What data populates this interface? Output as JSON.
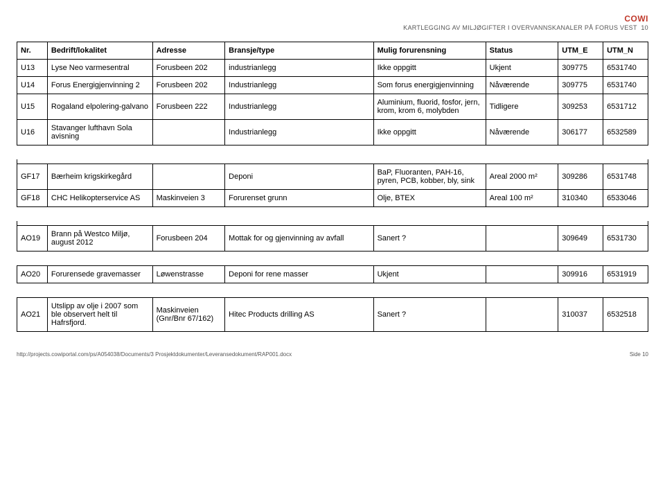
{
  "header": {
    "logo": "COWI",
    "title": "KARTLEGGING AV MILJØGIFTER I OVERVANNSKANALER PÅ FORUS VEST",
    "page_no": "10"
  },
  "columns": {
    "nr": "Nr.",
    "bedrift": "Bedrift/lokalitet",
    "adresse": "Adresse",
    "bransje": "Bransje/type",
    "mulig": "Mulig forurensning",
    "status": "Status",
    "utme": "UTM_E",
    "utmn": "UTM_N"
  },
  "rows_top": [
    {
      "nr": "U13",
      "bedrift": "Lyse Neo varmesentral",
      "adresse": "Forusbeen 202",
      "bransje": "industrianlegg",
      "mulig": "Ikke oppgitt",
      "status": "Ukjent",
      "utme": "309775",
      "utmn": "6531740"
    },
    {
      "nr": "U14",
      "bedrift": "Forus Energigjenvinning 2",
      "adresse": "Forusbeen 202",
      "bransje": "Industrianlegg",
      "mulig": "Som forus energigjenvinning",
      "status": "Nåværende",
      "utme": "309775",
      "utmn": "6531740"
    },
    {
      "nr": "U15",
      "bedrift": "Rogaland elpolering-galvano",
      "adresse": "Forusbeen 222",
      "bransje": "Industrianlegg",
      "mulig": "Aluminium, fluorid, fosfor, jern, krom, krom 6, molybden",
      "status": "Tidligere",
      "utme": "309253",
      "utmn": "6531712"
    },
    {
      "nr": "U16",
      "bedrift": "Stavanger lufthavn Sola avisning",
      "adresse": "",
      "bransje": "Industrianlegg",
      "mulig": "Ikke oppgitt",
      "status": "Nåværende",
      "utme": "306177",
      "utmn": "6532589"
    }
  ],
  "rows_gf": [
    {
      "nr": "GF17",
      "bedrift": "Bærheim krigskirkegård",
      "adresse": "",
      "bransje": "Deponi",
      "mulig": "BaP, Fluoranten, PAH-16, pyren, PCB, kobber, bly, sink",
      "status": "Areal 2000 m²",
      "utme": "309286",
      "utmn": "6531748"
    },
    {
      "nr": "GF18",
      "bedrift": "CHC Helikopterservice AS",
      "adresse": "Maskinveien 3",
      "bransje": "Forurenset grunn",
      "mulig": "Olje, BTEX",
      "status": "Areal 100 m²",
      "utme": "310340",
      "utmn": "6533046"
    }
  ],
  "rows_ao1": [
    {
      "nr": "AO19",
      "bedrift": "Brann på Westco Miljø, august 2012",
      "adresse": "Forusbeen 204",
      "bransje": "Mottak for og gjenvinning av avfall",
      "mulig": "Sanert ?",
      "status": "",
      "utme": "309649",
      "utmn": "6531730"
    }
  ],
  "rows_ao2": [
    {
      "nr": "AO20",
      "bedrift": "Forurensede gravemasser",
      "adresse": "Løwenstrasse",
      "bransje": "Deponi for rene masser",
      "mulig": "Ukjent",
      "status": "",
      "utme": "309916",
      "utmn": "6531919"
    }
  ],
  "rows_ao3": [
    {
      "nr": "AO21",
      "bedrift": "Utslipp av olje i 2007 som ble observert helt til Hafrsfjord.",
      "adresse": "Maskinveien (Gnr/Bnr 67/162)",
      "bransje": "Hitec Products drilling AS",
      "mulig": "Sanert ?",
      "status": "",
      "utme": "310037",
      "utmn": "6532518"
    }
  ],
  "footer": {
    "left": "http://projects.cowiportal.com/ps/A054038/Documents/3 Prosjektdokumenter/Leveransedokument/RAP001.docx",
    "right_label": "Side",
    "right_page": "10"
  }
}
